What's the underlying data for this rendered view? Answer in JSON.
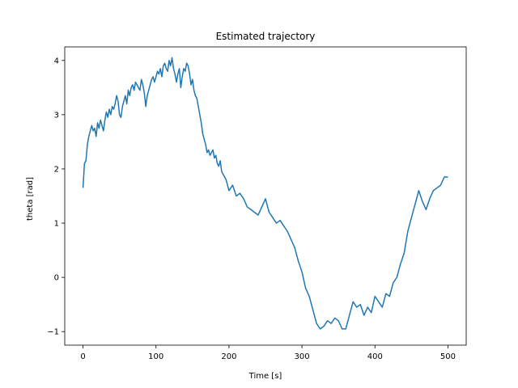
{
  "chart_data": {
    "type": "line",
    "title": "Estimated trajectory",
    "xlabel": "Time [s]",
    "ylabel": "theta [rad]",
    "xlim": [
      -25,
      525
    ],
    "ylim": [
      -1.25,
      4.25
    ],
    "xticks": [
      0,
      100,
      200,
      300,
      400,
      500
    ],
    "xtick_labels": [
      "0",
      "100",
      "200",
      "300",
      "400",
      "500"
    ],
    "yticks": [
      -1,
      0,
      1,
      2,
      3,
      4
    ],
    "ytick_labels": [
      "−1",
      "0",
      "1",
      "2",
      "3",
      "4"
    ],
    "grid": false,
    "legend": "none",
    "series": [
      {
        "color": "#1f77b4",
        "x": [
          0,
          2,
          4,
          6,
          8,
          10,
          12,
          14,
          16,
          18,
          20,
          22,
          24,
          26,
          28,
          30,
          32,
          34,
          36,
          38,
          40,
          42,
          44,
          46,
          48,
          50,
          52,
          54,
          56,
          58,
          60,
          62,
          64,
          66,
          68,
          70,
          72,
          74,
          76,
          78,
          80,
          82,
          84,
          86,
          88,
          90,
          92,
          94,
          96,
          98,
          100,
          102,
          104,
          106,
          108,
          110,
          112,
          114,
          116,
          118,
          120,
          122,
          124,
          126,
          128,
          130,
          132,
          134,
          136,
          138,
          140,
          142,
          144,
          146,
          148,
          150,
          152,
          154,
          156,
          158,
          160,
          162,
          164,
          166,
          168,
          170,
          172,
          174,
          176,
          178,
          180,
          182,
          184,
          186,
          188,
          190,
          192,
          194,
          196,
          198,
          200,
          205,
          210,
          215,
          220,
          225,
          230,
          235,
          240,
          245,
          250,
          255,
          260,
          265,
          270,
          275,
          280,
          285,
          290,
          295,
          300,
          305,
          310,
          315,
          320,
          325,
          330,
          335,
          340,
          345,
          350,
          355,
          360,
          365,
          370,
          375,
          380,
          385,
          390,
          395,
          400,
          405,
          410,
          415,
          420,
          425,
          430,
          435,
          440,
          445,
          450,
          455,
          460,
          465,
          470,
          475,
          480,
          485,
          490,
          495,
          500
        ],
        "y": [
          1.65,
          2.1,
          2.15,
          2.45,
          2.6,
          2.7,
          2.8,
          2.7,
          2.75,
          2.6,
          2.85,
          2.75,
          2.9,
          2.8,
          2.7,
          2.9,
          3.05,
          2.95,
          3.1,
          3.0,
          3.15,
          3.1,
          3.2,
          3.35,
          3.25,
          3.0,
          2.95,
          3.15,
          3.25,
          3.35,
          3.2,
          3.45,
          3.35,
          3.5,
          3.55,
          3.45,
          3.6,
          3.55,
          3.5,
          3.45,
          3.65,
          3.55,
          3.4,
          3.15,
          3.35,
          3.45,
          3.55,
          3.65,
          3.7,
          3.6,
          3.7,
          3.8,
          3.75,
          3.85,
          3.7,
          3.9,
          3.95,
          3.85,
          3.8,
          4.0,
          3.9,
          4.05,
          3.85,
          3.75,
          3.6,
          3.75,
          3.85,
          3.5,
          3.7,
          3.85,
          3.8,
          3.95,
          3.9,
          3.75,
          3.55,
          3.65,
          3.45,
          3.35,
          3.3,
          3.15,
          3.0,
          2.85,
          2.65,
          2.55,
          2.45,
          2.3,
          2.35,
          2.25,
          2.3,
          2.35,
          2.2,
          2.25,
          2.1,
          2.05,
          2.15,
          1.95,
          1.9,
          1.85,
          1.8,
          1.7,
          1.6,
          1.7,
          1.5,
          1.55,
          1.45,
          1.3,
          1.25,
          1.2,
          1.15,
          1.3,
          1.45,
          1.2,
          1.1,
          1.0,
          1.05,
          0.95,
          0.85,
          0.7,
          0.55,
          0.3,
          0.1,
          -0.2,
          -0.35,
          -0.6,
          -0.85,
          -0.95,
          -0.9,
          -0.8,
          -0.85,
          -0.75,
          -0.8,
          -0.95,
          -0.95,
          -0.7,
          -0.45,
          -0.55,
          -0.5,
          -0.7,
          -0.55,
          -0.65,
          -0.35,
          -0.45,
          -0.55,
          -0.3,
          -0.35,
          -0.1,
          0.0,
          0.25,
          0.45,
          0.85,
          1.1,
          1.35,
          1.6,
          1.4,
          1.25,
          1.45,
          1.6,
          1.65,
          1.7,
          1.85,
          1.85
        ]
      }
    ]
  }
}
